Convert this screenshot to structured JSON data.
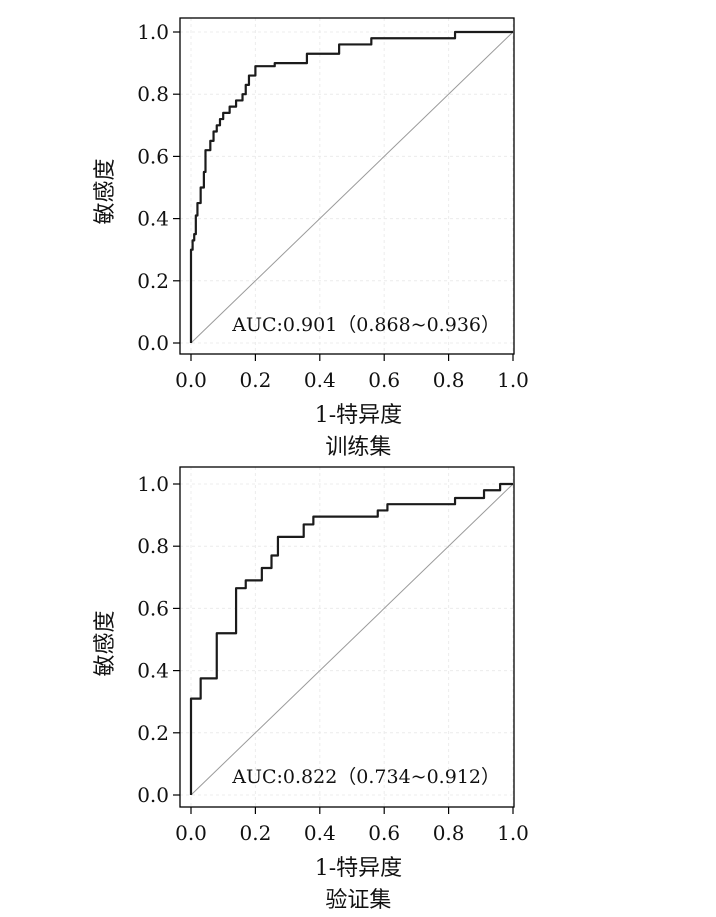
{
  "chart_data": [
    {
      "type": "line",
      "caption": "训练集",
      "xlabel": "1-特异度",
      "ylabel": "敏感度",
      "xlim": [
        0,
        1
      ],
      "ylim": [
        0,
        1
      ],
      "xticks": [
        "0.0",
        "0.2",
        "0.4",
        "0.6",
        "0.8",
        "1.0"
      ],
      "yticks": [
        "0.0",
        "0.2",
        "0.4",
        "0.6",
        "0.8",
        "1.0"
      ],
      "annotation": "AUC:0.901（0.868~0.936）",
      "reference_line": "diagonal",
      "series": [
        {
          "x": [
            0.0,
            0.0,
            0.005,
            0.005,
            0.01,
            0.01,
            0.015,
            0.015,
            0.02,
            0.02,
            0.03,
            0.03,
            0.04,
            0.04,
            0.045,
            0.045,
            0.06,
            0.06,
            0.07,
            0.07,
            0.08,
            0.08,
            0.09,
            0.09,
            0.1,
            0.1,
            0.12,
            0.12,
            0.14,
            0.14,
            0.16,
            0.16,
            0.17,
            0.17,
            0.18,
            0.18,
            0.2,
            0.2,
            0.26,
            0.26,
            0.36,
            0.36,
            0.46,
            0.46,
            0.56,
            0.56,
            0.82,
            0.82,
            1.0
          ],
          "y": [
            0.0,
            0.3,
            0.3,
            0.33,
            0.33,
            0.35,
            0.35,
            0.41,
            0.41,
            0.45,
            0.45,
            0.5,
            0.5,
            0.55,
            0.55,
            0.62,
            0.62,
            0.65,
            0.65,
            0.68,
            0.68,
            0.7,
            0.7,
            0.72,
            0.72,
            0.74,
            0.74,
            0.76,
            0.76,
            0.78,
            0.78,
            0.8,
            0.8,
            0.83,
            0.83,
            0.86,
            0.86,
            0.89,
            0.89,
            0.9,
            0.9,
            0.93,
            0.93,
            0.96,
            0.96,
            0.98,
            0.98,
            1.0,
            1.0
          ]
        }
      ]
    },
    {
      "type": "line",
      "caption": "验证集",
      "xlabel": "1-特异度",
      "ylabel": "敏感度",
      "xlim": [
        0,
        1
      ],
      "ylim": [
        0,
        1
      ],
      "xticks": [
        "0.0",
        "0.2",
        "0.4",
        "0.6",
        "0.8",
        "1.0"
      ],
      "yticks": [
        "0.0",
        "0.2",
        "0.4",
        "0.6",
        "0.8",
        "1.0"
      ],
      "annotation": "AUC:0.822（0.734~0.912）",
      "reference_line": "diagonal",
      "series": [
        {
          "x": [
            0.0,
            0.0,
            0.03,
            0.03,
            0.08,
            0.08,
            0.14,
            0.14,
            0.17,
            0.17,
            0.22,
            0.22,
            0.25,
            0.25,
            0.27,
            0.27,
            0.35,
            0.35,
            0.38,
            0.38,
            0.58,
            0.58,
            0.61,
            0.61,
            0.82,
            0.82,
            0.91,
            0.91,
            0.96,
            0.96,
            1.0
          ],
          "y": [
            0.0,
            0.31,
            0.31,
            0.375,
            0.375,
            0.52,
            0.52,
            0.665,
            0.665,
            0.69,
            0.69,
            0.73,
            0.73,
            0.77,
            0.77,
            0.83,
            0.83,
            0.87,
            0.87,
            0.895,
            0.895,
            0.915,
            0.915,
            0.935,
            0.935,
            0.955,
            0.955,
            0.98,
            0.98,
            1.0,
            1.0
          ]
        }
      ]
    }
  ]
}
